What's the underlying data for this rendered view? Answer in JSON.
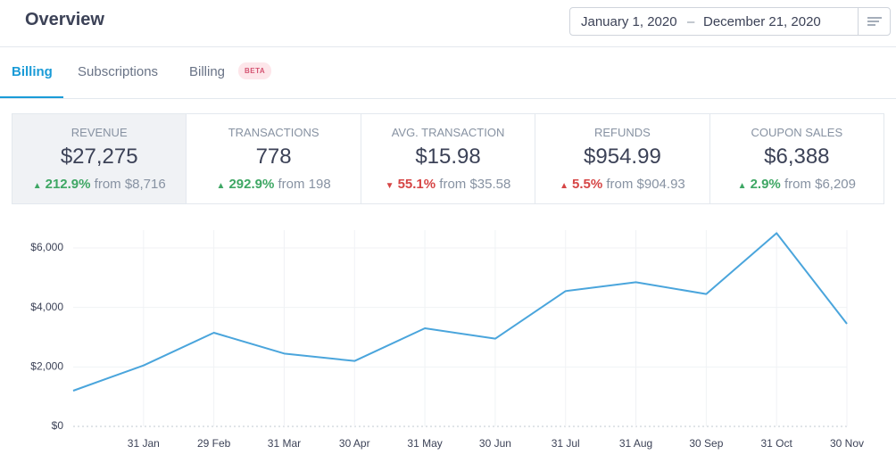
{
  "header": {
    "title": "Overview",
    "date_start": "January 1, 2020",
    "date_separator": "–",
    "date_end": "December 21, 2020"
  },
  "tabs": [
    {
      "label": "Billing",
      "active": true
    },
    {
      "label": "Subscriptions",
      "active": false
    },
    {
      "label": "Billing",
      "active": false,
      "badge": "BETA"
    }
  ],
  "stats": [
    {
      "label": "REVENUE",
      "value": "$27,275",
      "change": "212.9%",
      "from": "from $8,716",
      "arrow": "up",
      "color": "#3ea764"
    },
    {
      "label": "TRANSACTIONS",
      "value": "778",
      "change": "292.9%",
      "from": "from 198",
      "arrow": "up",
      "color": "#3ea764"
    },
    {
      "label": "AVG. TRANSACTION",
      "value": "$15.98",
      "change": "55.1%",
      "from": "from $35.58",
      "arrow": "down",
      "color": "#d64545"
    },
    {
      "label": "REFUNDS",
      "value": "$954.99",
      "change": "5.5%",
      "from": "from $904.93",
      "arrow": "up",
      "color": "#d64545"
    },
    {
      "label": "COUPON SALES",
      "value": "$6,388",
      "change": "2.9%",
      "from": "from $6,209",
      "arrow": "up",
      "color": "#3ea764"
    }
  ],
  "chart_data": {
    "type": "line",
    "categories": [
      null,
      "31 Jan",
      "29 Feb",
      "31 Mar",
      "30 Apr",
      "31 May",
      "30 Jun",
      "31 Jul",
      "31 Aug",
      "30 Sep",
      "31 Oct",
      "30 Nov"
    ],
    "values": [
      1200,
      2050,
      3150,
      2450,
      2200,
      3300,
      2950,
      4550,
      4850,
      4450,
      6500,
      3450
    ],
    "color": "#4aa5dc",
    "ylim": [
      0,
      6600
    ],
    "yticks": [
      {
        "value": 0,
        "label": "$0"
      },
      {
        "value": 2000,
        "label": "$2,000"
      },
      {
        "value": 4000,
        "label": "$4,000"
      },
      {
        "value": 6000,
        "label": "$6,000"
      }
    ],
    "grid": true
  }
}
